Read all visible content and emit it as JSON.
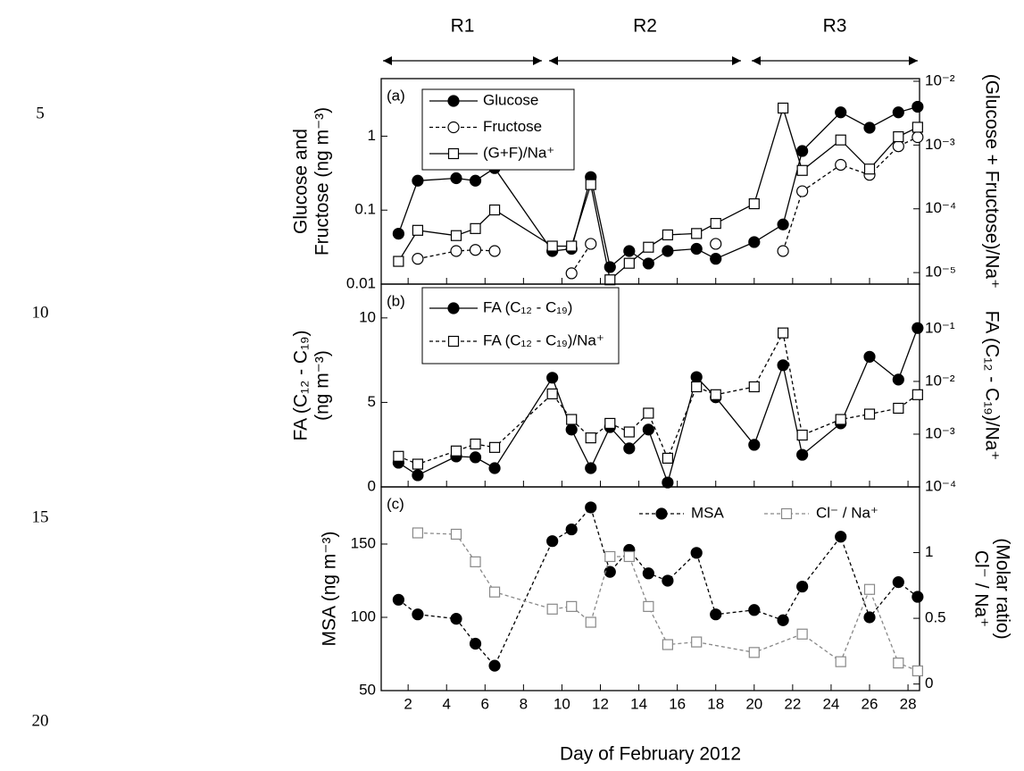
{
  "line_numbers": [
    5,
    10,
    15,
    20
  ],
  "chart_data": [
    {
      "type": "line",
      "panel_label": "(a)",
      "annotations": [
        "R1",
        "R2",
        "R3"
      ],
      "ylabel": [
        "Glucose and",
        "Fructose (ng m⁻³)"
      ],
      "y2label": [
        "(Glucose + Fructose)/Na⁺"
      ],
      "ylog": true,
      "y2log": true,
      "legend": "upper left",
      "x": [
        1.5,
        2.5,
        4.5,
        5.5,
        6.5,
        9.5,
        10.5,
        11.5,
        12.5,
        13.5,
        14.5,
        15.5,
        17,
        18,
        20,
        21.5,
        22.5,
        24.5,
        26,
        27.5,
        28.5
      ],
      "xlim": [
        0.6,
        28.6
      ],
      "ylim": [
        0.01,
        6
      ],
      "yticks": [
        0.01,
        0.1,
        1
      ],
      "y2lim": [
        6.6e-06,
        0.011
      ],
      "y2ticks": [
        {
          "value": 1e-05,
          "label": "10⁻⁵"
        },
        {
          "value": 0.0001,
          "label": "10⁻⁴"
        },
        {
          "value": 0.001,
          "label": "10⁻³"
        },
        {
          "value": 0.01,
          "label": "10⁻²"
        }
      ],
      "series": [
        {
          "name": "Glucose",
          "color": "#000000",
          "marker": "filled-circle",
          "dash": false,
          "values": [
            0.048,
            0.25,
            0.27,
            0.25,
            0.37,
            0.028,
            0.03,
            0.28,
            0.017,
            0.028,
            0.019,
            0.028,
            0.03,
            0.022,
            0.037,
            0.064,
            0.63,
            2.1,
            1.3,
            2.1,
            2.5
          ]
        },
        {
          "name": "Fructose",
          "color": "#000000",
          "marker": "open-circle",
          "dash": true,
          "values": [
            null,
            0.022,
            0.028,
            0.029,
            0.028,
            null,
            0.014,
            0.035,
            null,
            null,
            null,
            null,
            null,
            0.035,
            null,
            0.028,
            0.18,
            0.41,
            0.3,
            0.73,
            0.97
          ]
        },
        {
          "name": "(G+F)/Na⁺",
          "color": "#000000",
          "marker": "open-square",
          "dash": false,
          "axis": "y2",
          "values": [
            1.5e-05,
            4.6e-05,
            3.8e-05,
            4.9e-05,
            9.6e-05,
            2.6e-05,
            2.6e-05,
            0.00024,
            7.7e-06,
            1.4e-05,
            2.5e-05,
            3.9e-05,
            4.1e-05,
            5.9e-05,
            0.00012,
            0.0038,
            0.0004,
            0.0012,
            0.00042,
            0.00135,
            0.0019
          ]
        }
      ]
    },
    {
      "type": "line",
      "panel_label": "(b)",
      "ylabel": [
        "FA (C₁₂ - C₁₉)",
        "(ng m⁻³)"
      ],
      "y2label": [
        "FA (C₁₂ - C₁₉)/Na⁺"
      ],
      "ylog": false,
      "y2log": true,
      "legend": "upper left",
      "x": [
        1.5,
        2.5,
        4.5,
        5.5,
        6.5,
        9.5,
        10.5,
        11.5,
        12.5,
        13.5,
        14.5,
        15.5,
        17,
        18,
        20,
        21.5,
        22.5,
        24.5,
        26,
        27.5,
        28.5
      ],
      "xlim": [
        0.6,
        28.6
      ],
      "ylim": [
        0,
        12
      ],
      "yticks": [
        0,
        5,
        10
      ],
      "y2lim": [
        0.0001,
        0.7
      ],
      "y2ticks": [
        {
          "value": 0.0001,
          "label": "10⁻⁴"
        },
        {
          "value": 0.001,
          "label": "10⁻³"
        },
        {
          "value": 0.01,
          "label": "10⁻²"
        },
        {
          "value": 0.1,
          "label": "10⁻¹"
        }
      ],
      "series": [
        {
          "name": "FA (C₁₂ - C₁₉)",
          "color": "#000000",
          "marker": "filled-circle",
          "dash": false,
          "values": [
            1.43,
            0.69,
            1.8,
            1.75,
            1.11,
            6.46,
            3.39,
            1.11,
            3.54,
            2.28,
            3.39,
            0.26,
            6.5,
            5.3,
            2.49,
            7.2,
            1.9,
            3.76,
            7.7,
            6.35,
            9.4
          ]
        },
        {
          "name": "FA (C₁₂ - C₁₉)/Na⁺",
          "color": "#000000",
          "marker": "open-square",
          "dash": true,
          "axis": "y2",
          "values": [
            0.00038,
            0.00027,
            0.00048,
            0.00065,
            0.00056,
            0.0058,
            0.0019,
            0.00085,
            0.0016,
            0.0011,
            0.0025,
            0.00035,
            0.0079,
            0.0056,
            0.0079,
            0.083,
            0.00096,
            0.0019,
            0.0024,
            0.0031,
            0.0056
          ]
        }
      ]
    },
    {
      "type": "line",
      "panel_label": "(c)",
      "xlabel": "Day of February 2012",
      "ylabel": [
        "MSA (ng m⁻³)"
      ],
      "y2label": [
        "Cl⁻ / Na⁺",
        "(Molar ratio)"
      ],
      "ylog": false,
      "y2log": false,
      "legend": "upper right",
      "x": [
        1.5,
        2.5,
        4.5,
        5.5,
        6.5,
        9.5,
        10.5,
        11.5,
        12.5,
        13.5,
        14.5,
        15.5,
        17,
        18,
        20,
        21.5,
        22.5,
        24.5,
        26,
        27.5,
        28.5
      ],
      "xlim": [
        0.6,
        28.6
      ],
      "xticks": [
        2,
        4,
        6,
        8,
        10,
        12,
        14,
        16,
        18,
        20,
        22,
        24,
        26,
        28
      ],
      "ylim": [
        50,
        189
      ],
      "yticks": [
        50,
        100,
        150
      ],
      "y2lim": [
        -0.05,
        1.5
      ],
      "y2ticks": [
        0,
        0.5,
        1
      ],
      "series": [
        {
          "name": "MSA",
          "color": "#000000",
          "marker": "filled-circle",
          "dash": true,
          "values": [
            112,
            102,
            99,
            82,
            67,
            152,
            160,
            175,
            131,
            146,
            130,
            125,
            144,
            102,
            105,
            98,
            121,
            155,
            100,
            124,
            114
          ]
        },
        {
          "name": "Cl⁻ / Na⁺",
          "color": "#888888",
          "marker": "open-square",
          "dash": true,
          "axis": "y2",
          "x": [
            2.5,
            4.5,
            5.5,
            6.5,
            9.5,
            10.5,
            11.5,
            12.5,
            13.5,
            14.5,
            15.5,
            17,
            20,
            22.5,
            24.5,
            26,
            27.5,
            28.5
          ],
          "values": [
            1.15,
            1.14,
            0.93,
            0.7,
            0.57,
            0.59,
            0.47,
            0.97,
            0.97,
            0.59,
            0.3,
            0.32,
            0.24,
            0.38,
            0.17,
            0.72,
            0.16,
            0.1
          ]
        }
      ]
    }
  ]
}
